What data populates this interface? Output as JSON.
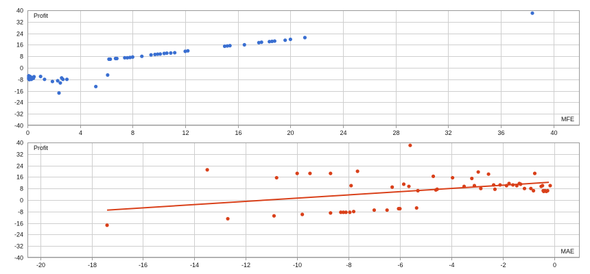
{
  "colors": {
    "mfe_points": "#3a6fd1",
    "mae_points": "#d9401a",
    "trend_line": "#d9401a",
    "grid": "#cfcfcf"
  },
  "chart_data": [
    {
      "type": "scatter",
      "ylabel": "Profit",
      "xlabel": "MFE",
      "xlim": [
        0,
        42
      ],
      "ylim": [
        -40,
        40
      ],
      "x_ticks": [
        0,
        4,
        8,
        12,
        16,
        20,
        24,
        28,
        32,
        36,
        40
      ],
      "y_ticks": [
        40,
        32,
        24,
        16,
        8,
        0,
        -8,
        -16,
        -24,
        -32,
        -40
      ],
      "grid": true,
      "points": [
        [
          0.1,
          -5.5
        ],
        [
          0.1,
          -6.5
        ],
        [
          0.1,
          -7.2
        ],
        [
          0.1,
          -7.8
        ],
        [
          0.15,
          -8.2
        ],
        [
          0.2,
          -6.0
        ],
        [
          0.2,
          -7.0
        ],
        [
          0.25,
          -7.5
        ],
        [
          0.3,
          -8.0
        ],
        [
          0.35,
          -6.8
        ],
        [
          0.45,
          -7.3
        ],
        [
          0.5,
          -6.2
        ],
        [
          1.0,
          -6.0
        ],
        [
          1.3,
          -8.0
        ],
        [
          1.9,
          -9.5
        ],
        [
          2.3,
          -9.0
        ],
        [
          2.4,
          -17.5
        ],
        [
          2.5,
          -10.5
        ],
        [
          2.6,
          -7.0
        ],
        [
          2.7,
          -8.0
        ],
        [
          3.0,
          -8.0
        ],
        [
          5.2,
          -13.0
        ],
        [
          6.1,
          -5.0
        ],
        [
          6.2,
          6.0
        ],
        [
          6.3,
          6.0
        ],
        [
          6.7,
          6.5
        ],
        [
          6.8,
          6.5
        ],
        [
          7.4,
          7.0
        ],
        [
          7.6,
          7.0
        ],
        [
          7.8,
          7.2
        ],
        [
          8.0,
          7.5
        ],
        [
          8.7,
          8.0
        ],
        [
          9.4,
          9.0
        ],
        [
          9.7,
          9.3
        ],
        [
          9.9,
          9.5
        ],
        [
          10.1,
          9.6
        ],
        [
          10.4,
          10.0
        ],
        [
          10.6,
          10.2
        ],
        [
          10.9,
          10.3
        ],
        [
          11.2,
          10.5
        ],
        [
          12.0,
          11.5
        ],
        [
          12.2,
          11.8
        ],
        [
          15.0,
          15.0
        ],
        [
          15.2,
          15.2
        ],
        [
          15.4,
          15.4
        ],
        [
          16.5,
          16.0
        ],
        [
          17.6,
          17.5
        ],
        [
          17.8,
          17.8
        ],
        [
          18.4,
          18.2
        ],
        [
          18.6,
          18.4
        ],
        [
          18.8,
          18.6
        ],
        [
          19.6,
          19.2
        ],
        [
          20.0,
          19.8
        ],
        [
          21.1,
          21.0
        ],
        [
          38.4,
          38.0
        ]
      ]
    },
    {
      "type": "scatter",
      "ylabel": "Profit",
      "xlabel": "MAE",
      "xlim": [
        -20.5,
        1
      ],
      "ylim": [
        -40,
        40
      ],
      "x_ticks": [
        -20,
        -18,
        -16,
        -14,
        -12,
        -10,
        -8,
        -6,
        -4,
        -2,
        0
      ],
      "y_ticks": [
        40,
        32,
        24,
        16,
        8,
        0,
        -8,
        -16,
        -24,
        -32,
        -40
      ],
      "grid": true,
      "trendline": {
        "x": [
          -17.4,
          -0.2
        ],
        "y": [
          -7.0,
          12.3
        ]
      },
      "points": [
        [
          -17.4,
          -17.5
        ],
        [
          -13.5,
          21.0
        ],
        [
          -12.7,
          -13.0
        ],
        [
          -10.9,
          -11.0
        ],
        [
          -10.8,
          15.5
        ],
        [
          -10.0,
          18.5
        ],
        [
          -9.8,
          -10.0
        ],
        [
          -9.5,
          18.5
        ],
        [
          -8.7,
          18.5
        ],
        [
          -8.7,
          -9.0
        ],
        [
          -8.3,
          -8.5
        ],
        [
          -8.2,
          -8.5
        ],
        [
          -8.1,
          -8.5
        ],
        [
          -7.95,
          -8.5
        ],
        [
          -7.9,
          10.0
        ],
        [
          -7.8,
          -8.0
        ],
        [
          -7.65,
          20.0
        ],
        [
          -7.0,
          -7.0
        ],
        [
          -6.5,
          -7.0
        ],
        [
          -6.3,
          9.0
        ],
        [
          -6.05,
          -6.0
        ],
        [
          -6.0,
          -6.0
        ],
        [
          -5.85,
          11.0
        ],
        [
          -5.65,
          9.5
        ],
        [
          -5.6,
          38.0
        ],
        [
          -5.35,
          -5.5
        ],
        [
          -5.3,
          6.5
        ],
        [
          -4.7,
          16.5
        ],
        [
          -4.6,
          7.0
        ],
        [
          -4.55,
          7.5
        ],
        [
          -3.95,
          15.5
        ],
        [
          -3.5,
          9.5
        ],
        [
          -3.2,
          15.0
        ],
        [
          -3.1,
          10.0
        ],
        [
          -2.95,
          19.5
        ],
        [
          -2.85,
          8.0
        ],
        [
          -2.55,
          18.0
        ],
        [
          -2.35,
          10.5
        ],
        [
          -2.3,
          7.5
        ],
        [
          -2.1,
          10.5
        ],
        [
          -1.85,
          10.0
        ],
        [
          -1.75,
          11.5
        ],
        [
          -1.6,
          10.5
        ],
        [
          -1.45,
          10.0
        ],
        [
          -1.35,
          11.5
        ],
        [
          -1.3,
          11.0
        ],
        [
          -1.15,
          8.0
        ],
        [
          -0.9,
          8.0
        ],
        [
          -0.8,
          6.5
        ],
        [
          -0.75,
          18.5
        ],
        [
          -0.5,
          9.5
        ],
        [
          -0.45,
          10.0
        ],
        [
          -0.42,
          6.5
        ],
        [
          -0.4,
          6.0
        ],
        [
          -0.35,
          6.5
        ],
        [
          -0.3,
          6.0
        ],
        [
          -0.25,
          6.5
        ],
        [
          -0.15,
          10.0
        ]
      ]
    }
  ]
}
